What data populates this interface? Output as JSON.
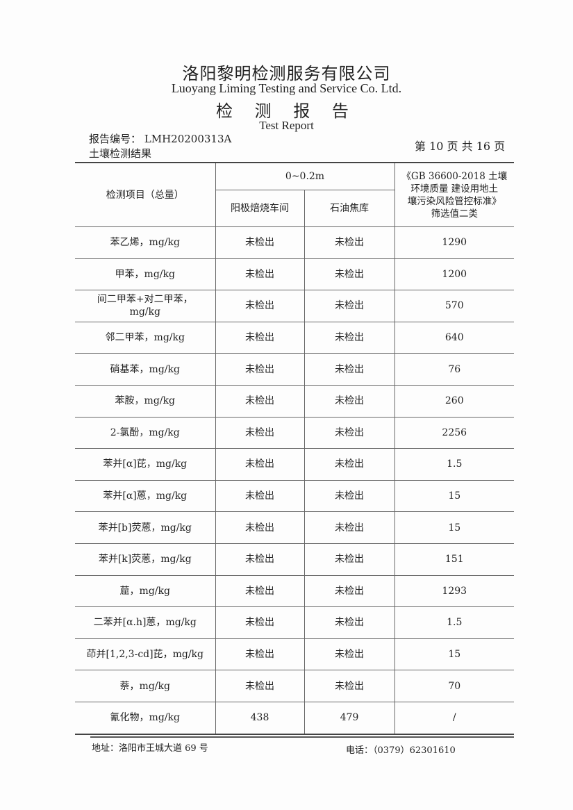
{
  "header": {
    "company_cn": "洛阳黎明检测服务有限公司",
    "company_en": "Luoyang Liming Testing and Service Co. Ltd.",
    "title_cn": "检 测 报 告",
    "title_en": "Test Report",
    "report_no": "报告编号： LMH20200313A",
    "section": "土壤检测结果",
    "page_info": "第 10 页 共 16 页"
  },
  "table": {
    "col_item": "检测项目（总量）",
    "depth": "0~0.2m",
    "col_site1": "阳极焙烧车间",
    "col_site2": "石油焦库",
    "col_standard": "《GB 36600-2018 土壤\n环境质量 建设用地土\n壤污染风险管控标准》\n筛选值二类",
    "rows": [
      {
        "item": "苯乙烯，mg/kg",
        "a": "未检出",
        "b": "未检出",
        "std": "1290"
      },
      {
        "item": "甲苯，mg/kg",
        "a": "未检出",
        "b": "未检出",
        "std": "1200"
      },
      {
        "item": "间二甲苯+对二甲苯，\nmg/kg",
        "a": "未检出",
        "b": "未检出",
        "std": "570"
      },
      {
        "item": "邻二甲苯，mg/kg",
        "a": "未检出",
        "b": "未检出",
        "std": "640"
      },
      {
        "item": "硝基苯，mg/kg",
        "a": "未检出",
        "b": "未检出",
        "std": "76"
      },
      {
        "item": "苯胺，mg/kg",
        "a": "未检出",
        "b": "未检出",
        "std": "260"
      },
      {
        "item": "2-氯酚，mg/kg",
        "a": "未检出",
        "b": "未检出",
        "std": "2256"
      },
      {
        "item": "苯并[α]芘，mg/kg",
        "a": "未检出",
        "b": "未检出",
        "std": "1.5"
      },
      {
        "item": "苯并[α]蒽，mg/kg",
        "a": "未检出",
        "b": "未检出",
        "std": "15"
      },
      {
        "item": "苯并[b]荧蒽，mg/kg",
        "a": "未检出",
        "b": "未检出",
        "std": "15"
      },
      {
        "item": "苯并[k]荧蒽，mg/kg",
        "a": "未检出",
        "b": "未检出",
        "std": "151"
      },
      {
        "item": "䓛，mg/kg",
        "a": "未检出",
        "b": "未检出",
        "std": "1293"
      },
      {
        "item": "二苯并[α.h]蒽，mg/kg",
        "a": "未检出",
        "b": "未检出",
        "std": "1.5"
      },
      {
        "item": "茚并[1,2,3-cd]芘，mg/kg",
        "a": "未检出",
        "b": "未检出",
        "std": "15"
      },
      {
        "item": "萘，mg/kg",
        "a": "未检出",
        "b": "未检出",
        "std": "70"
      },
      {
        "item": "氰化物，mg/kg",
        "a": "438",
        "b": "479",
        "std": "/"
      }
    ]
  },
  "footer": {
    "address": "地址：洛阳市王城大道 69 号",
    "phone": "电话：（0379）62301610"
  }
}
